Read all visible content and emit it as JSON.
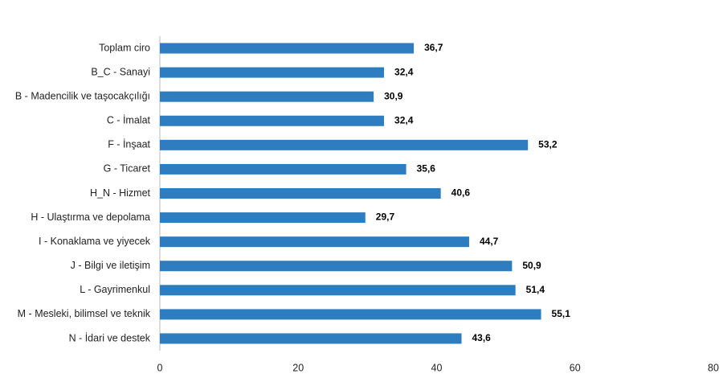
{
  "chart_data": {
    "type": "hbar",
    "categories": [
      "Toplam ciro",
      "B_C - Sanayi",
      "B - Madencilik ve taşocakçılığı",
      "C - İmalat",
      "F - İnşaat",
      "G - Ticaret",
      "H_N - Hizmet",
      "H - Ulaştırma ve depolama",
      "I - Konaklama ve yiyecek",
      "J - Bilgi ve iletişim",
      "L - Gayrimenkul",
      "M - Mesleki, bilimsel ve teknik",
      "N - İdari ve destek"
    ],
    "values": [
      36.7,
      32.4,
      30.9,
      32.4,
      53.2,
      35.6,
      40.6,
      29.7,
      44.7,
      50.9,
      51.4,
      55.1,
      43.6
    ],
    "value_labels": [
      "36,7",
      "32,4",
      "30,9",
      "32,4",
      "53,2",
      "35,6",
      "40,6",
      "29,7",
      "44,7",
      "50,9",
      "51,4",
      "55,1",
      "43,6"
    ],
    "color": "#2e7dc0",
    "xlim": [
      0,
      80
    ],
    "xticks": [
      0,
      20,
      40,
      60,
      80
    ]
  }
}
